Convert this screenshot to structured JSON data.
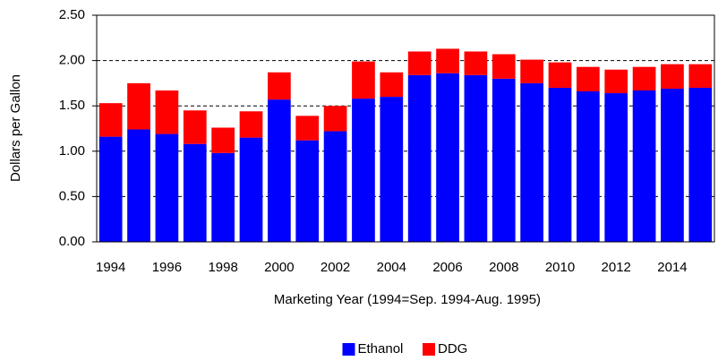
{
  "chart_data": {
    "type": "stacked_bar",
    "x_label": "Marketing Year (1994=Sep. 1994-Aug. 1995)",
    "y_label": "Dollars per Gallon",
    "categories": [
      "1994",
      null,
      "1996",
      null,
      "1998",
      null,
      "2000",
      null,
      "2002",
      null,
      "2004",
      null,
      "2006",
      null,
      "2008",
      null,
      "2010",
      null,
      "2012",
      null,
      "2014",
      null
    ],
    "series": [
      {
        "name": "Ethanol",
        "color": "#0000ff",
        "values": [
          1.16,
          1.24,
          1.19,
          1.08,
          0.98,
          1.15,
          1.57,
          1.12,
          1.22,
          1.58,
          1.6,
          1.84,
          1.86,
          1.84,
          1.8,
          1.75,
          1.7,
          1.66,
          1.64,
          1.67,
          1.69,
          1.7
        ]
      },
      {
        "name": "DDG",
        "color": "#ff0000",
        "values": [
          0.37,
          0.51,
          0.48,
          0.37,
          0.28,
          0.29,
          0.3,
          0.27,
          0.28,
          0.41,
          0.27,
          0.26,
          0.27,
          0.26,
          0.27,
          0.26,
          0.28,
          0.27,
          0.26,
          0.26,
          0.27,
          0.26
        ]
      }
    ],
    "ylim": [
      0,
      2.5
    ],
    "yticks": [
      {
        "value": 0,
        "label": "0.00"
      },
      {
        "value": 0.5,
        "label": "0.50"
      },
      {
        "value": 1,
        "label": "1.00"
      },
      {
        "value": 1.5,
        "label": "1.50"
      },
      {
        "value": 2,
        "label": "2.00"
      },
      {
        "value": 2.5,
        "label": "2.50"
      }
    ],
    "grid": true,
    "legend": "bottom"
  }
}
